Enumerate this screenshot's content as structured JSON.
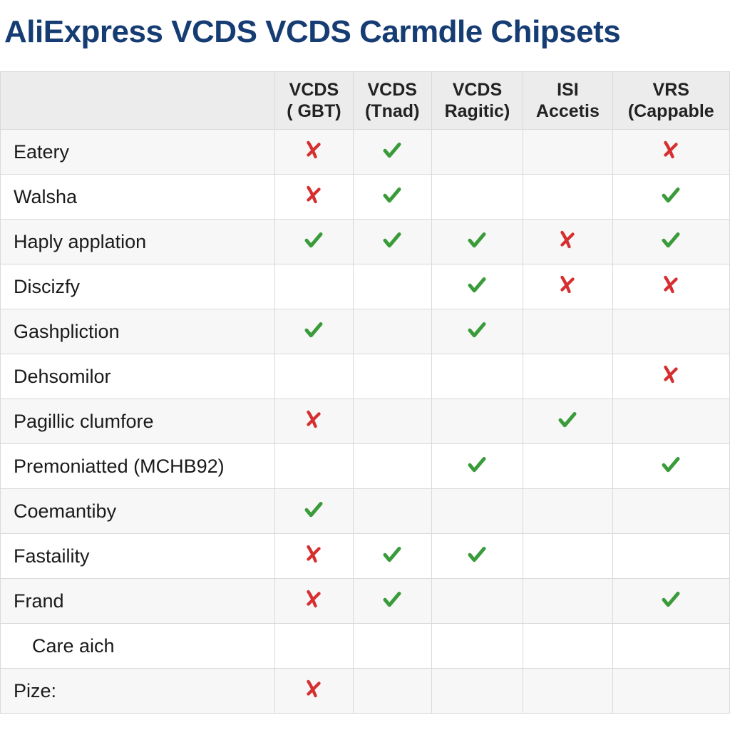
{
  "title": "AliExpress VCDS VCDS Carmdle Chipsets",
  "title_color": "#163d73",
  "header_bg": "#ececec",
  "border_color": "#d9d9d9",
  "row_alt_bg": "#f7f7f7",
  "row_bg": "#ffffff",
  "check_color": "#3a9b3a",
  "cross_color": "#d62f2f",
  "columns": [
    {
      "l1": "VCDS",
      "l2": "( GBT)"
    },
    {
      "l1": "VCDS",
      "l2": "(Tnad)"
    },
    {
      "l1": "VCDS",
      "l2": "Ragitic)"
    },
    {
      "l1": "ISI",
      "l2": "Accetis"
    },
    {
      "l1": "VRS",
      "l2": "(Cappable"
    }
  ],
  "rows": [
    {
      "label": "Eatery",
      "cells": [
        "x",
        "v",
        "",
        "",
        "x"
      ]
    },
    {
      "label": "Walsha",
      "cells": [
        "x",
        "v",
        "",
        "",
        "v"
      ]
    },
    {
      "label": "Haply applation",
      "cells": [
        "v",
        "v",
        "v",
        "x",
        "v"
      ]
    },
    {
      "label": "Discizfy",
      "cells": [
        "",
        "",
        "v",
        "x",
        "x"
      ]
    },
    {
      "label": "Gashpliction",
      "cells": [
        "v",
        "",
        "v",
        "",
        ""
      ]
    },
    {
      "label": "Dehsomilor",
      "cells": [
        "",
        "",
        "",
        "",
        "x"
      ]
    },
    {
      "label": "Pagillic clumfore",
      "cells": [
        "x",
        "",
        "",
        "v",
        ""
      ]
    },
    {
      "label": "Premoniatted (MCHB92)",
      "cells": [
        "",
        "",
        "v",
        "",
        "v"
      ]
    },
    {
      "label": "Coemantiby",
      "cells": [
        "v",
        "",
        "",
        "",
        ""
      ]
    },
    {
      "label": "Fastaility",
      "cells": [
        "x",
        "v",
        "v",
        "",
        ""
      ]
    },
    {
      "label": "Frand",
      "cells": [
        "x",
        "v",
        "",
        "",
        "v"
      ]
    },
    {
      "label": "Care aich",
      "cells": [
        "",
        "",
        "",
        "",
        ""
      ],
      "indent": true
    },
    {
      "label": "Pize:",
      "cells": [
        "x",
        "",
        "",
        "",
        ""
      ]
    }
  ]
}
